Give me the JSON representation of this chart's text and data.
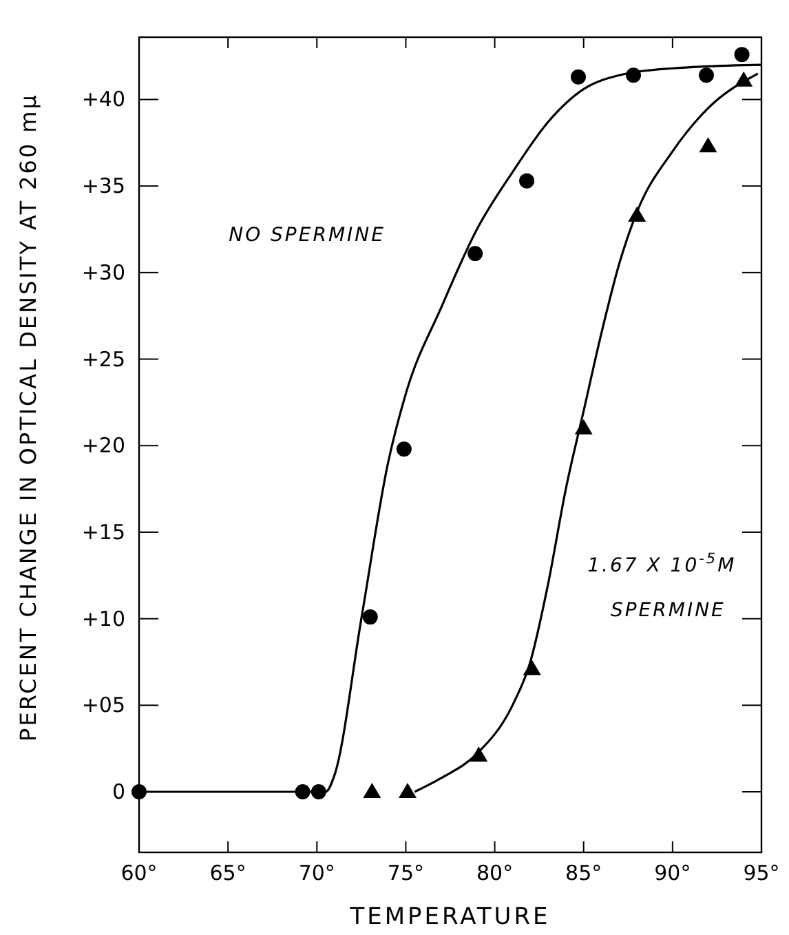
{
  "chart_data": {
    "type": "scatter",
    "xlabel": "TEMPERATURE",
    "ylabel": "PERCENT CHANGE IN OPTICAL DENSITY AT 260 mμ",
    "xlim": [
      60,
      95
    ],
    "ylim": [
      -3.5,
      43.6
    ],
    "xticks": [
      {
        "value": 60,
        "label": "60°"
      },
      {
        "value": 65,
        "label": "65°"
      },
      {
        "value": 70,
        "label": "70°"
      },
      {
        "value": 75,
        "label": "75°"
      },
      {
        "value": 80,
        "label": "80°"
      },
      {
        "value": 85,
        "label": "85°"
      },
      {
        "value": 90,
        "label": "90°"
      },
      {
        "value": 95,
        "label": "95°"
      }
    ],
    "yticks": [
      0,
      {
        "value": 5,
        "label": "+05"
      },
      {
        "value": 10,
        "label": "+10"
      },
      {
        "value": 15,
        "label": "+15"
      },
      {
        "value": 20,
        "label": "+20"
      },
      {
        "value": 25,
        "label": "+25"
      },
      {
        "value": 30,
        "label": "+30"
      },
      {
        "value": 35,
        "label": "+35"
      },
      {
        "value": 40,
        "label": "+40"
      }
    ],
    "grid": false,
    "series": [
      {
        "type": "line",
        "marker": "none",
        "line_style": "solid",
        "color": "#000000",
        "x": [
          60,
          70.5,
          71,
          72.5,
          74,
          75,
          77,
          79,
          81,
          83,
          85,
          87,
          90,
          95
        ],
        "values": [
          0,
          0,
          1,
          10,
          19,
          23,
          28,
          32.5,
          35.8,
          38.7,
          40.6,
          41.4,
          41.8,
          42
        ]
      },
      {
        "type": "line",
        "marker": "none",
        "line_style": "solid",
        "color": "#000000",
        "x": [
          75.5,
          77,
          79,
          81,
          82,
          83,
          84,
          85,
          86,
          87,
          88,
          90,
          92,
          94.8
        ],
        "values": [
          0,
          0.8,
          2.2,
          5,
          7.5,
          12,
          17.5,
          22,
          26.5,
          30.5,
          33.5,
          37,
          39.5,
          41.5
        ]
      },
      {
        "marker": "circle",
        "color": "#000000",
        "x": [
          60,
          69.2,
          70.1,
          73,
          74.9,
          78.9,
          81.8,
          84.7,
          87.8,
          91.9,
          93.9
        ],
        "values": [
          0,
          0,
          0,
          10.1,
          19.8,
          31.1,
          35.3,
          41.3,
          41.4,
          41.4,
          42.6
        ]
      },
      {
        "type": "scatter",
        "marker": "triangle",
        "color": "#000000",
        "x": [
          73.1,
          75.1,
          79.1,
          82.1,
          85,
          88,
          92,
          94
        ],
        "values": [
          0,
          0,
          2.1,
          7.1,
          21,
          33.3,
          37.3,
          41.1
        ]
      }
    ],
    "annotations": [
      "NO SPERMINE",
      "1.67 X 10$^{-5}$M",
      "SPERMINE"
    ]
  }
}
